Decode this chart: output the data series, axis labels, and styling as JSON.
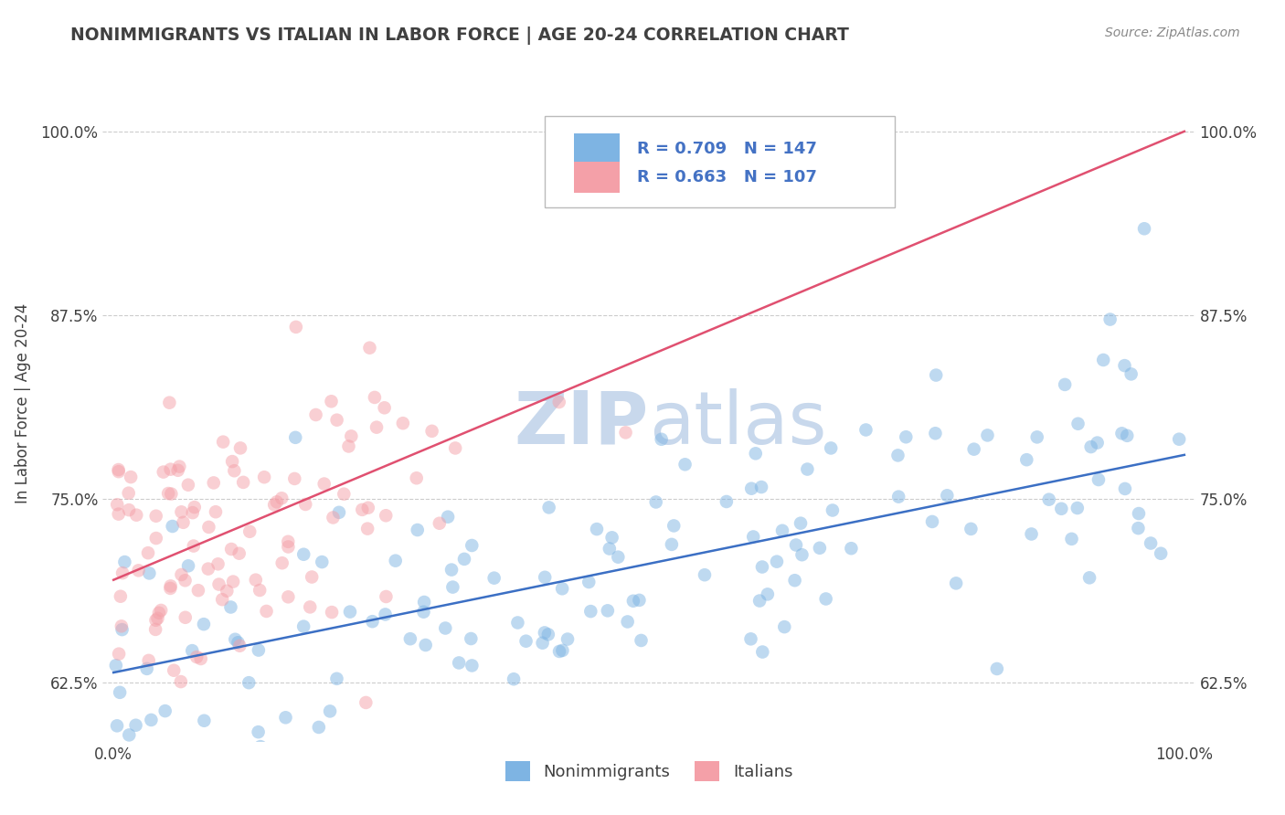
{
  "title": "NONIMMIGRANTS VS ITALIAN IN LABOR FORCE | AGE 20-24 CORRELATION CHART",
  "source_text": "Source: ZipAtlas.com",
  "ylabel": "In Labor Force | Age 20-24",
  "xlim": [
    -0.01,
    1.01
  ],
  "ylim": [
    0.585,
    1.045
  ],
  "yticks": [
    0.625,
    0.75,
    0.875,
    1.0
  ],
  "ytick_labels": [
    "62.5%",
    "75.0%",
    "87.5%",
    "100.0%"
  ],
  "blue_R": 0.709,
  "blue_N": 147,
  "red_R": 0.663,
  "red_N": 107,
  "blue_color": "#7EB4E3",
  "red_color": "#F4A0A8",
  "blue_line_color": "#3B6FC4",
  "red_line_color": "#E05070",
  "watermark_color": "#C8D8EC",
  "background_color": "#FFFFFF",
  "grid_color": "#CCCCCC",
  "legend_text_color": "#4472C4",
  "title_color": "#404040",
  "blue_intercept": 0.632,
  "blue_slope": 0.148,
  "red_intercept": 0.695,
  "red_slope": 0.305
}
